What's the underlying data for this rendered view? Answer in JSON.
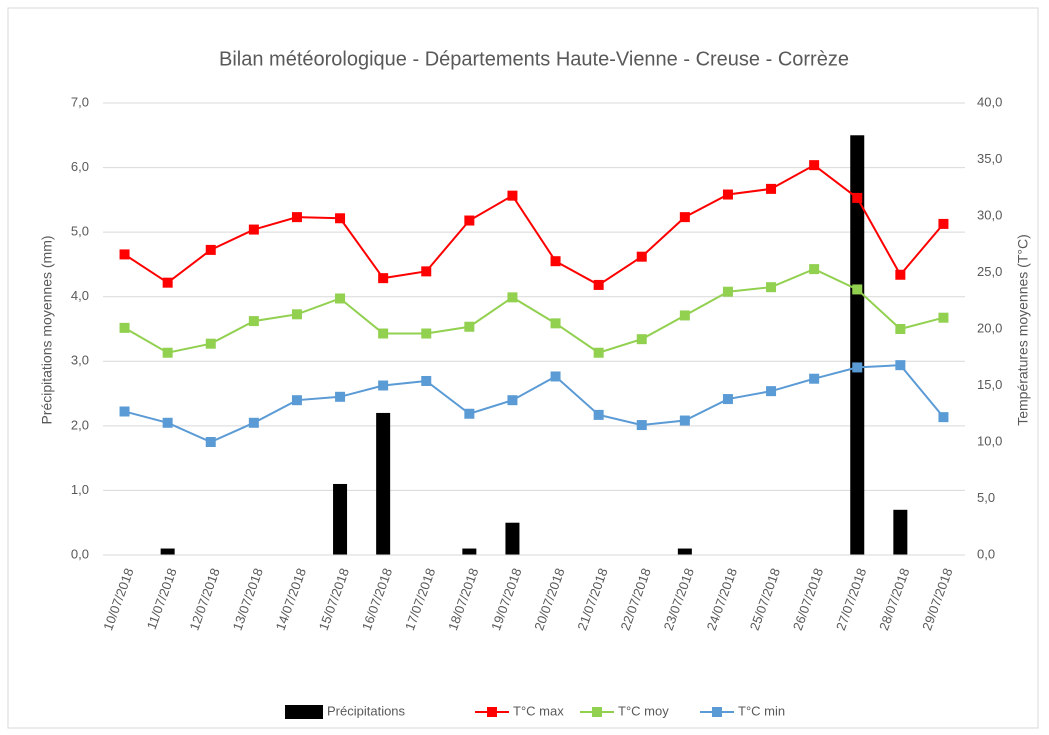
{
  "chart_data": {
    "type": "combo",
    "title": "Bilan météorologique - Départements Haute-Vienne - Creuse - Corrèze",
    "ylabel": "Précipitations moyennes (mm)",
    "y2label": "Températures moyennes (T°C)",
    "categories": [
      "10/07/2018",
      "11/07/2018",
      "12/07/2018",
      "13/07/2018",
      "14/07/2018",
      "15/07/2018",
      "16/07/2018",
      "17/07/2018",
      "18/07/2018",
      "19/07/2018",
      "20/07/2018",
      "21/07/2018",
      "22/07/2018",
      "23/07/2018",
      "24/07/2018",
      "25/07/2018",
      "26/07/2018",
      "27/07/2018",
      "28/07/2018",
      "29/07/2018"
    ],
    "series": [
      {
        "name": "Précipitations",
        "type": "bar",
        "axis": "y",
        "color": "#000000",
        "values": [
          0,
          0.1,
          0,
          0,
          0,
          1.1,
          2.2,
          0,
          0.1,
          0.5,
          0,
          0,
          0,
          0.1,
          0,
          0,
          0,
          6.5,
          0.7,
          0
        ]
      },
      {
        "name": "T°C max",
        "type": "line",
        "axis": "y2",
        "color": "#ff0000",
        "values": [
          26.6,
          24.1,
          27.0,
          28.8,
          29.9,
          29.8,
          24.5,
          25.1,
          29.6,
          31.8,
          26.0,
          23.9,
          26.4,
          29.9,
          31.9,
          32.4,
          34.5,
          31.6,
          24.8,
          29.3
        ]
      },
      {
        "name": "T°C moy",
        "type": "line",
        "axis": "y2",
        "color": "#92d050",
        "values": [
          20.1,
          17.9,
          18.7,
          20.7,
          21.3,
          22.7,
          19.6,
          19.6,
          20.2,
          22.8,
          20.5,
          17.9,
          19.1,
          21.2,
          23.3,
          23.7,
          25.3,
          23.5,
          20.0,
          21.0
        ]
      },
      {
        "name": "T°C min",
        "type": "line",
        "axis": "y2",
        "color": "#5b9bd5",
        "values": [
          12.7,
          11.7,
          10.0,
          11.7,
          13.7,
          14.0,
          15.0,
          15.4,
          12.5,
          13.7,
          15.8,
          12.4,
          11.5,
          11.9,
          13.8,
          14.5,
          15.6,
          16.6,
          16.8,
          12.2
        ]
      }
    ],
    "ylim": [
      0,
      7
    ],
    "yticks": [
      {
        "value": 0,
        "label": "0,0"
      },
      {
        "value": 1,
        "label": "1,0"
      },
      {
        "value": 2,
        "label": "2,0"
      },
      {
        "value": 3,
        "label": "3,0"
      },
      {
        "value": 4,
        "label": "4,0"
      },
      {
        "value": 5,
        "label": "5,0"
      },
      {
        "value": 6,
        "label": "6,0"
      },
      {
        "value": 7,
        "label": "7,0"
      }
    ],
    "y2lim": [
      0,
      40
    ],
    "y2ticks": [
      {
        "value": 0,
        "label": "0,0"
      },
      {
        "value": 5,
        "label": "5,0"
      },
      {
        "value": 10,
        "label": "10,0"
      },
      {
        "value": 15,
        "label": "15,0"
      },
      {
        "value": 20,
        "label": "20,0"
      },
      {
        "value": 25,
        "label": "25,0"
      },
      {
        "value": 30,
        "label": "30,0"
      },
      {
        "value": 35,
        "label": "35,0"
      },
      {
        "value": 40,
        "label": "40,0"
      }
    ],
    "grid": true,
    "legend": "bottom"
  }
}
